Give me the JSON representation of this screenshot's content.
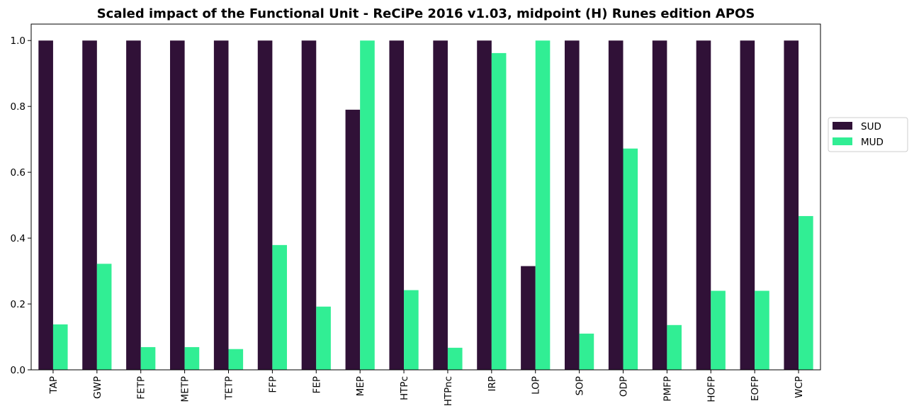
{
  "chart_data": {
    "type": "bar",
    "title": "Scaled impact of the Functional Unit - ReCiPe 2016 v1.03, midpoint (H) Runes edition APOS",
    "xlabel": "",
    "ylabel": "",
    "ylim": [
      0,
      1.05
    ],
    "yticks": [
      "0.0",
      "0.2",
      "0.4",
      "0.6",
      "0.8",
      "1.0"
    ],
    "legend_position": "right",
    "grid": false,
    "categories": [
      "TAP",
      "GWP",
      "FETP",
      "METP",
      "TETP",
      "FFP",
      "FEP",
      "MEP",
      "HTPc",
      "HTPnc",
      "IRP",
      "LOP",
      "SOP",
      "ODP",
      "PMFP",
      "HOFP",
      "EOFP",
      "WCP"
    ],
    "series": [
      {
        "name": "SUD",
        "color": "#301137",
        "values": [
          1.0,
          1.0,
          1.0,
          1.0,
          1.0,
          1.0,
          1.0,
          0.79,
          1.0,
          1.0,
          1.0,
          0.315,
          1.0,
          1.0,
          1.0,
          1.0,
          1.0,
          1.0
        ]
      },
      {
        "name": "MUD",
        "color": "#31EE94",
        "values": [
          0.138,
          0.322,
          0.069,
          0.069,
          0.063,
          0.379,
          0.192,
          1.0,
          0.242,
          0.067,
          0.962,
          1.0,
          0.11,
          0.672,
          0.136,
          0.24,
          0.24,
          0.467
        ]
      }
    ]
  }
}
